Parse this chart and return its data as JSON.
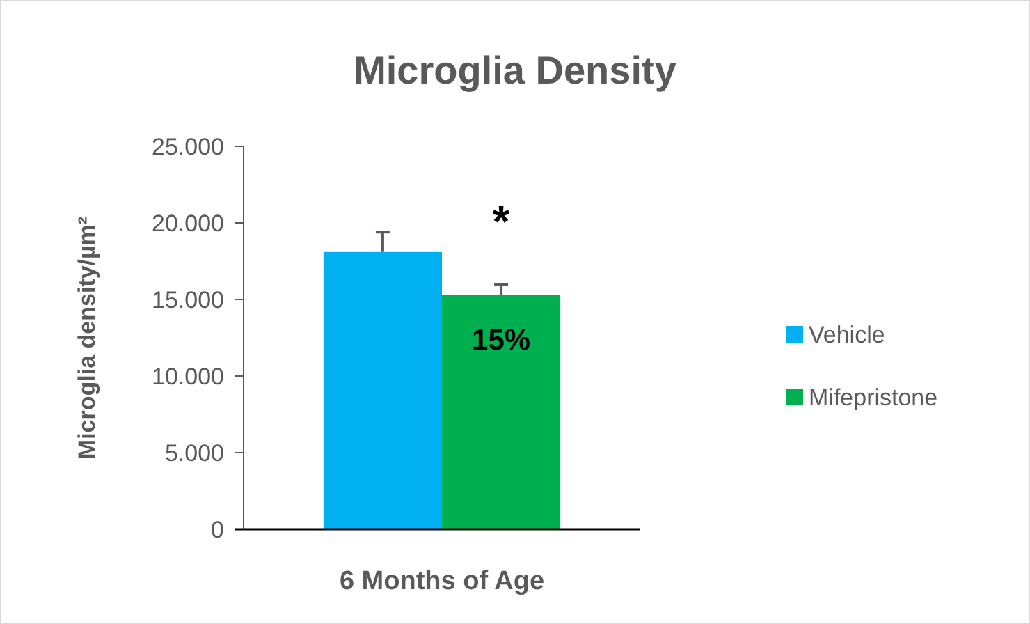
{
  "chart_data": {
    "type": "bar",
    "title": "Microglia Density",
    "ylabel": "Microglia density/µm²",
    "categories": [
      "6 Months of Age"
    ],
    "series": [
      {
        "name": "Vehicle",
        "color": "#00b0f0",
        "values": [
          18100
        ],
        "errors": [
          1300
        ]
      },
      {
        "name": "Mifepristone",
        "color": "#00b050",
        "values": [
          15300
        ],
        "errors": [
          700
        ]
      }
    ],
    "ylim": [
      0,
      25000
    ],
    "yticks": [
      {
        "value": 0,
        "label": "0"
      },
      {
        "value": 5000,
        "label": "5.000"
      },
      {
        "value": 10000,
        "label": "10.000"
      },
      {
        "value": 15000,
        "label": "15.000"
      },
      {
        "value": 20000,
        "label": "20.000"
      },
      {
        "value": 25000,
        "label": "25.000"
      }
    ],
    "annotations": [
      "*",
      "15%"
    ],
    "legend": "right"
  }
}
